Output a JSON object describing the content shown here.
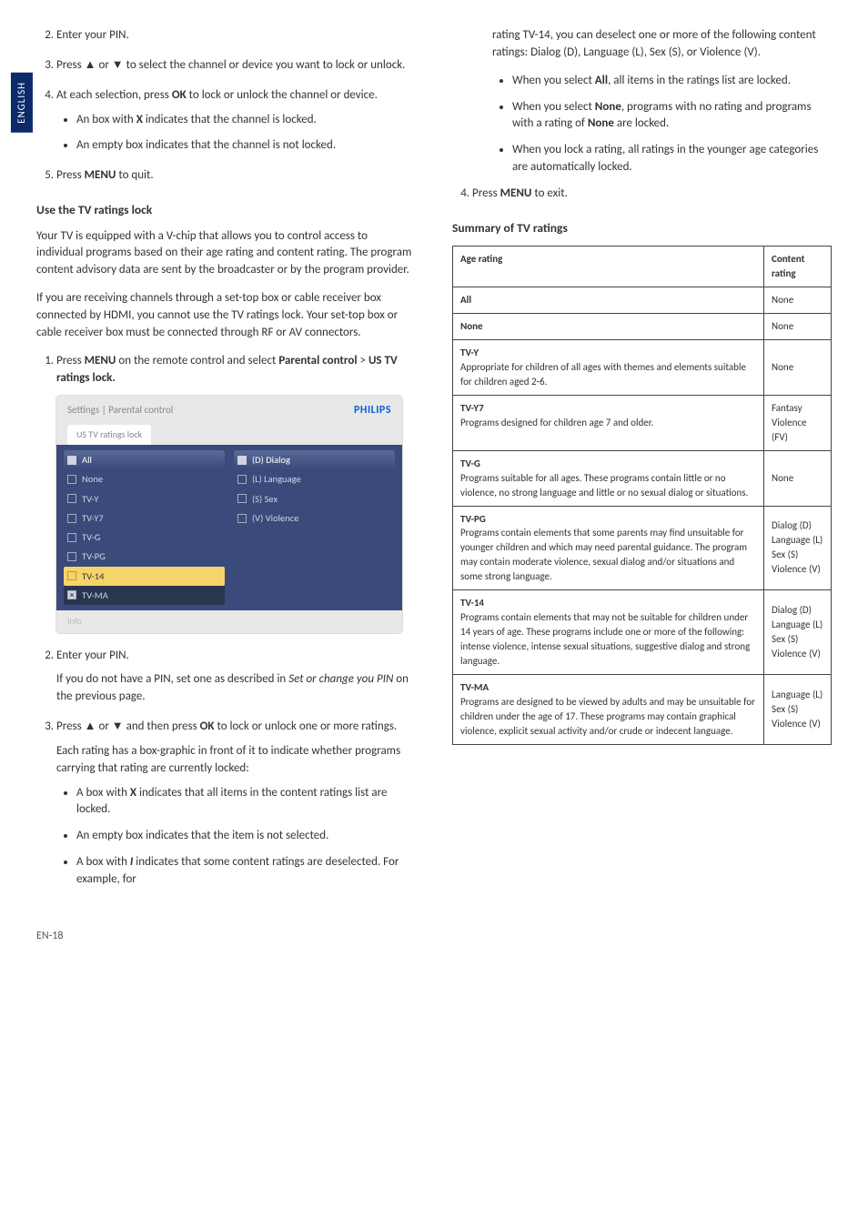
{
  "sidetab": "ENGLISH",
  "left": {
    "step2": "Enter your PIN.",
    "step3_a": "Press ",
    "step3_b": " or ",
    "step3_c": " to select the channel or device you want to lock or unlock.",
    "step4_a": "At each selection, press ",
    "step4_ok": "OK",
    "step4_b": " to lock or unlock the channel or device.",
    "step4_bul1_a": "An box with ",
    "step4_bul1_x": "X",
    "step4_bul1_b": " indicates that the channel is locked.",
    "step4_bul2": "An empty box indicates that the channel is not locked.",
    "step5_a": "Press ",
    "step5_menu": "MENU",
    "step5_b": " to quit.",
    "heading_use": "Use the TV ratings lock",
    "para1": "Your TV is equipped with a V-chip that allows you to control access to individual programs based on their age rating and content rating.  The program content advisory data are sent by the broadcaster or by the program provider.",
    "para2": "If you are receiving channels through a set-top box or cable receiver box connected by HDMI, you cannot use the TV ratings lock.  Your set-top box or cable receiver box must be connected through RF or AV connectors.",
    "pc1_a": "Press ",
    "pc1_menu": "MENU",
    "pc1_b": " on the remote control and select ",
    "pc1_c": "Parental control",
    "pc1_d": " > ",
    "pc1_e": "US TV ratings lock.",
    "ui": {
      "breadcrumb": "Settings | Parental control",
      "brand": "PHILIPS",
      "tab": "US TV ratings lock",
      "left_items": [
        "All",
        "None",
        "TV-Y",
        "TV-Y7",
        "TV-G",
        "TV-PG",
        "TV-14",
        "TV-MA"
      ],
      "right_items": [
        "(D) Dialog",
        "(L) Language",
        "(S) Sex",
        "(V) Violence"
      ],
      "footer": "Info"
    },
    "pc2": "Enter your PIN.",
    "pc2b_a": "If you do not have a PIN, set one as described in ",
    "pc2b_it": "Set or change you PIN",
    "pc2b_b": " on the previous page.",
    "pc3_a": "Press ",
    "pc3_b": " or ",
    "pc3_c": " and then press ",
    "pc3_ok": "OK",
    "pc3_d": " to lock or unlock one or more ratings.",
    "pc3_para": "Each rating has a box-graphic in front of it to indicate whether programs carrying that rating are currently locked:",
    "pc3_bul1_a": "A box with ",
    "pc3_bul1_x": "X",
    "pc3_bul1_b": " indicates that all items in the content ratings list are locked.",
    "pc3_bul2": "An empty box indicates that the item is not selected.",
    "pc3_bul3_a": "A box with ",
    "pc3_bul3_i": "I",
    "pc3_bul3_b": " indicates that some content ratings are deselected.  For example, for"
  },
  "right": {
    "cont": "rating TV-14, you can deselect one or more of the following content ratings: Dialog (D), Language (L), Sex (S), or Violence (V).",
    "b1_a": "When you select ",
    "b1_all": "All",
    "b1_b": ", all items in the ratings list are locked.",
    "b2_a": "When you select ",
    "b2_none": "None",
    "b2_b": ", programs with no rating and programs with a rating of ",
    "b2_none2": "None",
    "b2_c": " are locked.",
    "b3": "When you lock a rating, all ratings in the younger age categories are automatically locked.",
    "step4_a": "Press ",
    "step4_menu": "MENU",
    "step4_b": " to exit.",
    "summary_heading": "Summary of TV ratings",
    "th_age": "Age rating",
    "th_content": "Content rating",
    "rows": [
      {
        "age_title": "All",
        "age_desc": "",
        "content": "None"
      },
      {
        "age_title": "None",
        "age_desc": "",
        "content": "None"
      },
      {
        "age_title": "TV-Y",
        "age_desc": "Appropriate for children of all ages with themes and elements suitable for children aged 2-6.",
        "content": "None"
      },
      {
        "age_title": "TV-Y7",
        "age_desc": "Programs designed for children age 7 and older.",
        "content": "Fantasy Violence (FV)"
      },
      {
        "age_title": "TV-G",
        "age_desc": "Programs suitable for all ages. These programs contain little or no violence, no strong language and little or no sexual dialog or situations.",
        "content": "None"
      },
      {
        "age_title": "TV-PG",
        "age_desc": "Programs contain elements that some parents may find unsuitable for younger children and which may need parental guidance. The program may contain moderate violence, sexual dialog and/or situations and some strong language.",
        "content": "Dialog (D)\nLanguage (L)\nSex (S)\nViolence (V)"
      },
      {
        "age_title": "TV-14",
        "age_desc": "Programs contain elements that may not be suitable for children under 14 years of age. These programs include one or more of the following: intense violence, intense sexual situations, suggestive dialog and strong language.",
        "content": "Dialog (D)\nLanguage (L)\nSex (S)\nViolence (V)"
      },
      {
        "age_title": "TV-MA",
        "age_desc": "Programs are designed to be viewed by adults and may be unsuitable for children under the age of 17. These programs may contain graphical violence, explicit sexual activity and/or crude or indecent language.",
        "content": "Language (L)\nSex (S)\nViolence (V)"
      }
    ]
  },
  "footer": "EN-18",
  "glyphs": {
    "up": "▲",
    "down": "▼"
  }
}
